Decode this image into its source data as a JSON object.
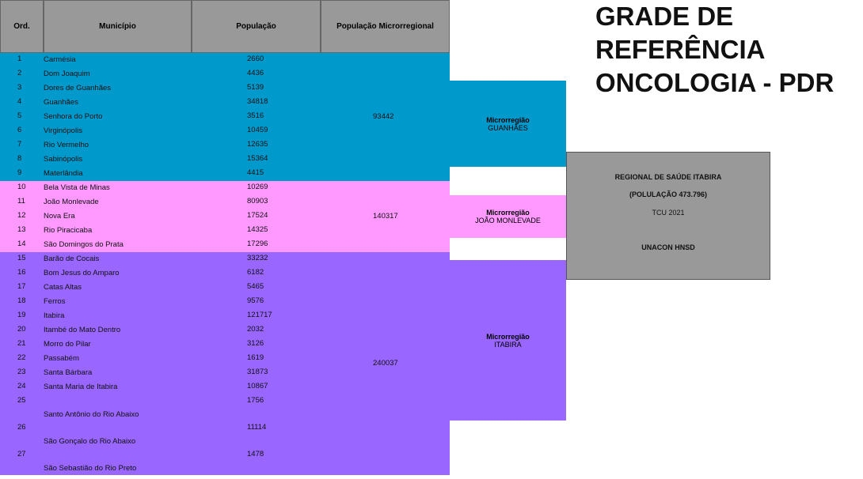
{
  "title": {
    "lines": [
      "GRADE DE",
      "REFERÊNCIA",
      "ONCOLOGIA - PDR"
    ]
  },
  "table": {
    "headers": [
      "Ord.",
      "Município",
      "População",
      "População Microrregional"
    ],
    "groups": [
      {
        "microregion_label": "Microrregião",
        "microregion_name": "GUANHÃES",
        "total": 93442,
        "rows": [
          [
            1,
            "Carmésia",
            2660
          ],
          [
            2,
            "Dom Joaquim",
            4436
          ],
          [
            3,
            "Dores de Guanhães",
            5139
          ],
          [
            4,
            "Guanhães",
            34818
          ],
          [
            5,
            "Senhora do Porto",
            3516
          ],
          [
            6,
            "Virginópolis",
            10459
          ],
          [
            7,
            "Rio Vermelho",
            12635
          ],
          [
            8,
            "Sabinópolis",
            15364
          ],
          [
            9,
            "Materlândia",
            4415
          ]
        ]
      },
      {
        "microregion_label": "Microrregião",
        "microregion_name": "JOÃO MONLEVADE",
        "total": 140317,
        "rows": [
          [
            10,
            "Bela Vista de Minas",
            10269
          ],
          [
            11,
            "João Monlevade",
            80903
          ],
          [
            12,
            "Nova Era",
            17524
          ],
          [
            13,
            "Rio Piracicaba",
            14325
          ],
          [
            14,
            "São Domingos do Prata",
            17296
          ]
        ]
      },
      {
        "microregion_label": "Microrregião",
        "microregion_name": "ITABIRA",
        "total": 240037,
        "rows": [
          [
            15,
            "Barão de Cocais",
            33232
          ],
          [
            16,
            "Bom Jesus do Amparo",
            6182
          ],
          [
            17,
            "Catas Altas",
            5465
          ],
          [
            18,
            "Ferros",
            9576
          ],
          [
            19,
            "Itabira",
            121717
          ],
          [
            20,
            "Itambé do Mato Dentro",
            2032
          ],
          [
            21,
            "Morro do Pilar",
            3126
          ],
          [
            22,
            "Passabém",
            1619
          ],
          [
            23,
            "Santa Bárbara",
            31873
          ],
          [
            24,
            "Santa Maria de Itabira",
            10867
          ],
          [
            25,
            "Santo Antônio do Rio Abaixo",
            1756
          ],
          [
            26,
            "São Gonçalo do Rio Abaixo",
            11114
          ],
          [
            27,
            "São Sebastião do Rio Preto",
            1478
          ]
        ]
      }
    ]
  },
  "regional_box": {
    "lines": [
      "REGIONAL DE SAÚDE ITABIRA",
      "(POLULAÇÃO 473.796)",
      "TCU 2021",
      "UNACON HNSD"
    ]
  }
}
